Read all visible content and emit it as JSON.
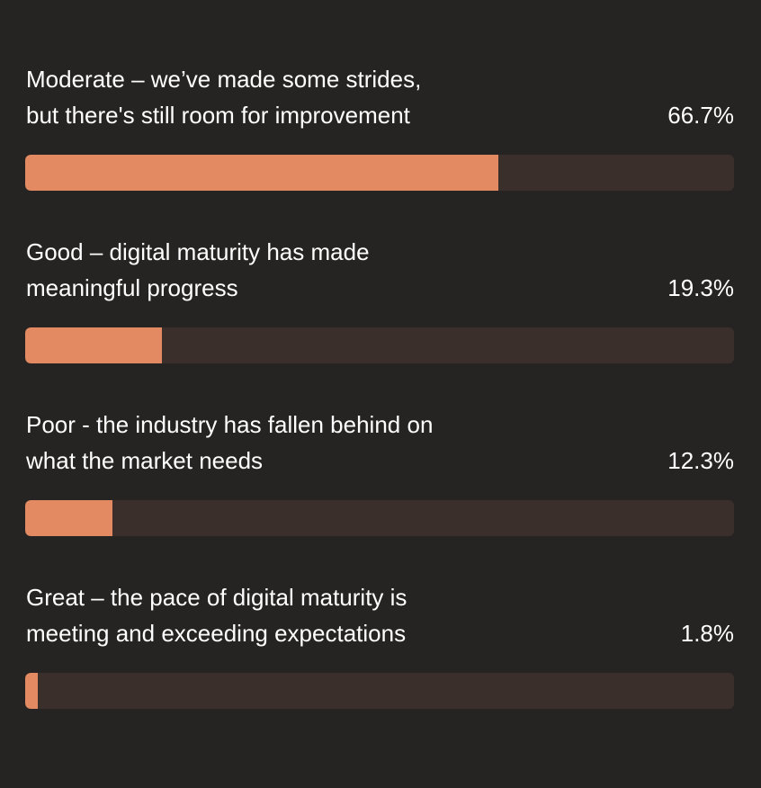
{
  "colors": {
    "background": "#252423",
    "bar_fill": "#e38a63",
    "bar_track": "#3a2f2a",
    "text": "#ffffff"
  },
  "chart_data": {
    "type": "bar",
    "orientation": "horizontal",
    "categories": [
      "Moderate – we’ve made some strides,\nbut there's still room for improvement",
      "Good – digital maturity has made\nmeaningful progress",
      "Poor - the industry has fallen behind on\nwhat the market needs",
      "Great – the pace of digital maturity is\nmeeting and exceeding expectations"
    ],
    "values": [
      66.7,
      19.3,
      12.3,
      1.8
    ],
    "value_labels": [
      "66.7%",
      "19.3%",
      "12.3%",
      "1.8%"
    ],
    "xlim": [
      0,
      100
    ],
    "grid": false,
    "legend": "none"
  }
}
